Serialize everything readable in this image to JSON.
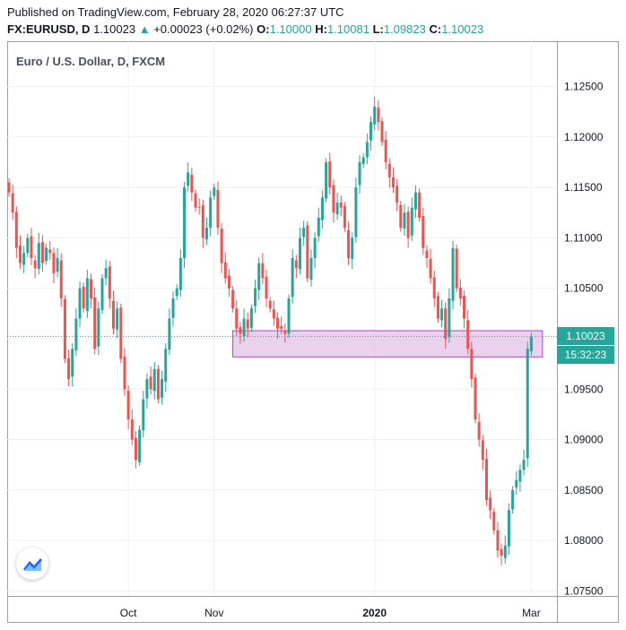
{
  "header": {
    "published": "Published on TradingView.com, February 28, 2020 06:27:37 UTC",
    "symbol": "FX:EURUSD, D",
    "last": "1.10023",
    "change_arrow": "▲",
    "change": "+0.00023 (+0.02%)",
    "o_label": "O:",
    "o": "1.10000",
    "h_label": "H:",
    "h": "1.10081",
    "l_label": "L:",
    "l": "1.09823",
    "c_label": "C:",
    "c": "1.10023"
  },
  "chart_data": {
    "type": "candlestick",
    "title": "Euro / U.S. Dollar, D, FXCM",
    "y_ticks": [
      "1.12500",
      "1.12000",
      "1.11500",
      "1.11000",
      "1.10500",
      "1.10000",
      "1.09500",
      "1.09000",
      "1.08500",
      "1.08000",
      "1.07500"
    ],
    "ylim": [
      1.0745,
      1.1295
    ],
    "x_ticks": [
      {
        "label": "Oct",
        "bold": false,
        "index": 32
      },
      {
        "label": "Nov",
        "bold": false,
        "index": 55
      },
      {
        "label": "2020",
        "bold": true,
        "index": 98
      },
      {
        "label": "Mar",
        "bold": false,
        "index": 140
      }
    ],
    "last_price_label": "1.10023",
    "countdown_label": "15:32:23",
    "zone": {
      "from_index": 60,
      "to_index": 143,
      "top": 1.1008,
      "bottom": 1.0982
    },
    "up_color": "#26a69a",
    "down_color": "#ef5350",
    "zone_color": "#e1bee7",
    "zone_border": "#ab47bc",
    "closes": [
      1.1145,
      1.1125,
      1.109,
      1.1075,
      1.1085,
      1.11,
      1.108,
      1.107,
      1.1095,
      1.1075,
      1.109,
      1.1085,
      1.1065,
      1.108,
      1.104,
      1.098,
      1.096,
      1.099,
      1.102,
      1.105,
      1.103,
      1.106,
      1.104,
      1.099,
      1.103,
      1.106,
      1.107,
      1.104,
      1.101,
      1.103,
      1.098,
      1.095,
      1.092,
      1.09,
      1.088,
      1.091,
      1.094,
      1.096,
      1.095,
      1.097,
      1.094,
      1.096,
      1.099,
      1.102,
      1.104,
      1.105,
      1.108,
      1.115,
      1.1165,
      1.1145,
      1.113,
      1.113,
      1.11,
      1.111,
      1.114,
      1.115,
      1.111,
      1.1075,
      1.106,
      1.105,
      1.103,
      1.101,
      1.1005,
      1.102,
      1.101,
      1.103,
      1.105,
      1.1075,
      1.106,
      1.104,
      1.103,
      1.102,
      1.101,
      1.101,
      1.1005,
      1.104,
      1.108,
      1.107,
      1.11,
      1.111,
      1.106,
      1.108,
      1.11,
      1.112,
      1.114,
      1.1175,
      1.115,
      1.1125,
      1.1135,
      1.113,
      1.111,
      1.108,
      1.11,
      1.115,
      1.1175,
      1.118,
      1.1195,
      1.1215,
      1.123,
      1.1215,
      1.1195,
      1.1175,
      1.116,
      1.115,
      1.1135,
      1.111,
      1.1125,
      1.11,
      1.113,
      1.1145,
      1.112,
      1.109,
      1.108,
      1.106,
      1.104,
      1.102,
      1.103,
      1.1,
      1.104,
      1.109,
      1.105,
      1.104,
      1.102,
      1.099,
      1.096,
      1.092,
      1.09,
      1.088,
      1.084,
      1.083,
      1.081,
      1.079,
      1.0785,
      1.0795,
      1.083,
      1.085,
      1.086,
      1.087,
      1.088,
      1.099,
      1.1002
    ]
  }
}
